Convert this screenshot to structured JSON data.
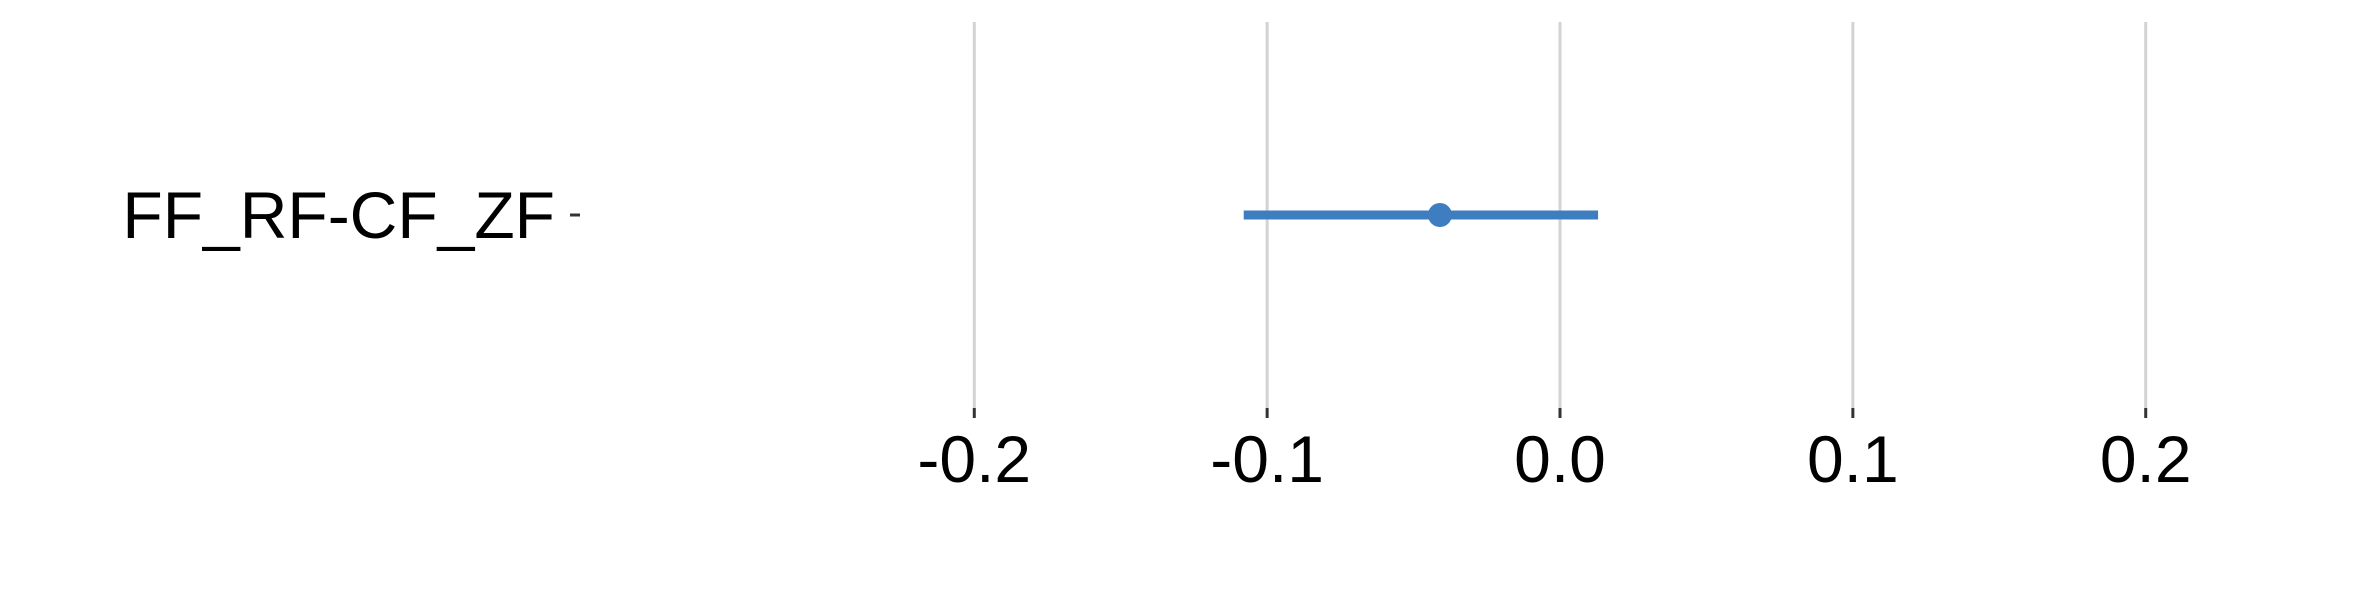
{
  "chart_data": {
    "type": "scatter",
    "subtype": "forest-plot",
    "title": "",
    "xlabel": "",
    "ylabel": "",
    "xlim": [
      -0.28,
      0.28
    ],
    "xticks": [
      -0.2,
      -0.1,
      0.0,
      0.1,
      0.2
    ],
    "xtick_labels": [
      "-0.2",
      "-0.1",
      "0.0",
      "0.1",
      "0.2"
    ],
    "categories": [
      "FF_RF-CF_ZF"
    ],
    "points": [
      {
        "label": "FF_RF-CF_ZF",
        "estimate": -0.041,
        "ci_low": -0.108,
        "ci_high": 0.013
      }
    ],
    "grid": "vertical major",
    "legend": "none",
    "colors": {
      "series": "#3f7dc1",
      "grid": "#d3d3d3",
      "text": "#000000"
    }
  }
}
